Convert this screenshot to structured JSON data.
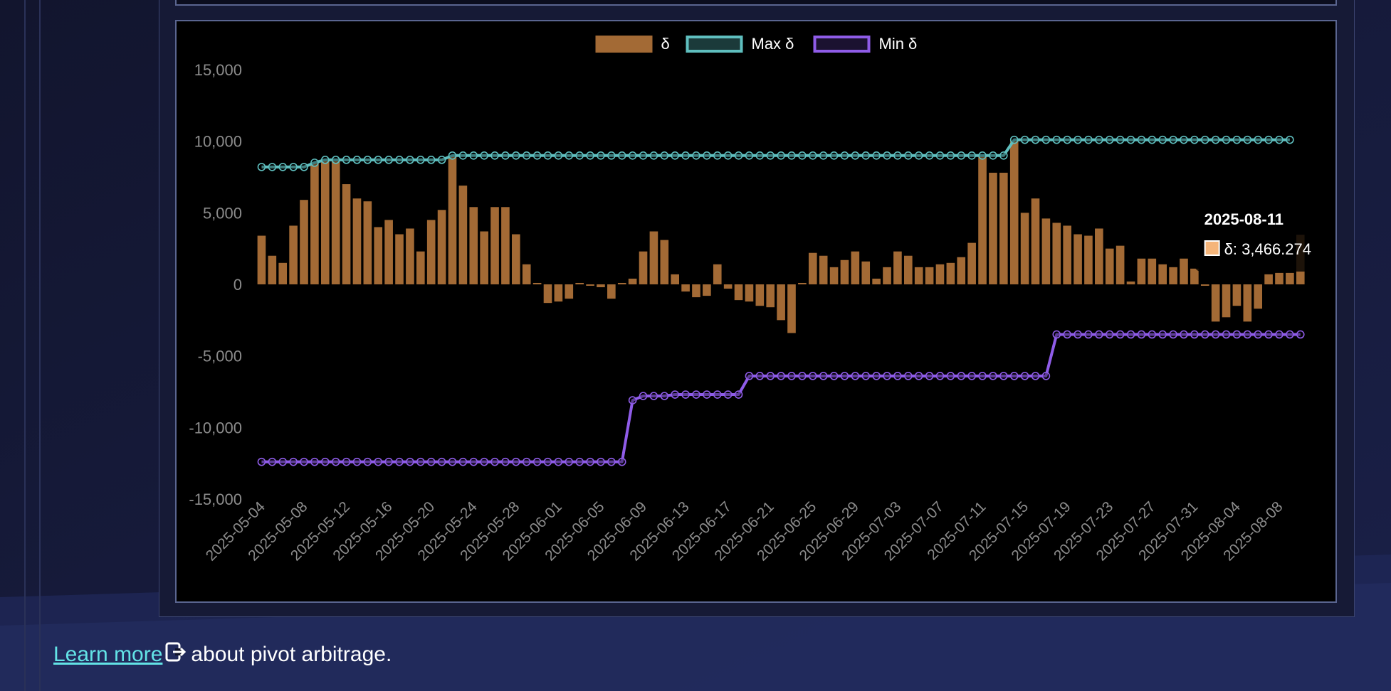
{
  "chart_data": {
    "type": "bar",
    "x_range": [
      "2025-05-04",
      "2025-08-12"
    ],
    "x_tick_labels": [
      "2025-05-04",
      "2025-05-08",
      "2025-05-12",
      "2025-05-16",
      "2025-05-20",
      "2025-05-24",
      "2025-05-28",
      "2025-06-01",
      "2025-06-05",
      "2025-06-09",
      "2025-06-13",
      "2025-06-17",
      "2025-06-21",
      "2025-06-25",
      "2025-06-29",
      "2025-07-03",
      "2025-07-07",
      "2025-07-11",
      "2025-07-15",
      "2025-07-19",
      "2025-07-23",
      "2025-07-27",
      "2025-07-31",
      "2025-08-04",
      "2025-08-08"
    ],
    "ylim": [
      -15000,
      15000
    ],
    "y_ticks": [
      15000,
      10000,
      5000,
      0,
      -5000,
      -10000,
      -15000
    ],
    "y_tick_labels": [
      "15,000",
      "10,000",
      "5,000",
      "0",
      "-5,000",
      "-10,000",
      "-15,000"
    ],
    "grid": false,
    "legend_position": "top",
    "series": [
      {
        "name": "δ",
        "type": "bar",
        "color": "#a36a35",
        "values": [
          3400,
          2000,
          1500,
          4100,
          5900,
          8500,
          8700,
          8600,
          7000,
          6000,
          5800,
          4000,
          4500,
          3500,
          3900,
          2300,
          4500,
          5200,
          9000,
          6900,
          5400,
          3700,
          5400,
          5400,
          3500,
          1400,
          100,
          -1300,
          -1200,
          -1000,
          100,
          -100,
          -200,
          -1000,
          100,
          400,
          2300,
          3700,
          3100,
          700,
          -500,
          -900,
          -800,
          1400,
          -300,
          -1100,
          -1200,
          -1500,
          -1600,
          -2500,
          -3400,
          100,
          2200,
          2000,
          1200,
          1700,
          2300,
          1600,
          400,
          1200,
          2300,
          2000,
          1200,
          1200,
          1400,
          1500,
          1900,
          2900,
          9000,
          7800,
          7800,
          10000,
          5000,
          6000,
          4600,
          4300,
          4100,
          3500,
          3400,
          3900,
          2500,
          2700,
          200,
          1800,
          1800,
          1400,
          1200,
          1800,
          1100,
          -100,
          -2600,
          -2300,
          -1500,
          -2600,
          -1700,
          700,
          800,
          800,
          3466.274
        ],
        "value_format": "3,466.274"
      },
      {
        "name": "Max δ",
        "type": "line",
        "color": "#5fbfbf",
        "values": [
          8200,
          8200,
          8200,
          8200,
          8200,
          8500,
          8700,
          8700,
          8700,
          8700,
          8700,
          8700,
          8700,
          8700,
          8700,
          8700,
          8700,
          8700,
          9000,
          9000,
          9000,
          9000,
          9000,
          9000,
          9000,
          9000,
          9000,
          9000,
          9000,
          9000,
          9000,
          9000,
          9000,
          9000,
          9000,
          9000,
          9000,
          9000,
          9000,
          9000,
          9000,
          9000,
          9000,
          9000,
          9000,
          9000,
          9000,
          9000,
          9000,
          9000,
          9000,
          9000,
          9000,
          9000,
          9000,
          9000,
          9000,
          9000,
          9000,
          9000,
          9000,
          9000,
          9000,
          9000,
          9000,
          9000,
          9000,
          9000,
          9000,
          9000,
          9000,
          10100,
          10100,
          10100,
          10100,
          10100,
          10100,
          10100,
          10100,
          10100,
          10100,
          10100,
          10100,
          10100,
          10100,
          10100,
          10100,
          10100,
          10100,
          10100,
          10100,
          10100,
          10100,
          10100,
          10100,
          10100,
          10100,
          10100
        ]
      },
      {
        "name": "Min δ",
        "type": "line",
        "color": "#8f5ce8",
        "values": [
          -12400,
          -12400,
          -12400,
          -12400,
          -12400,
          -12400,
          -12400,
          -12400,
          -12400,
          -12400,
          -12400,
          -12400,
          -12400,
          -12400,
          -12400,
          -12400,
          -12400,
          -12400,
          -12400,
          -12400,
          -12400,
          -12400,
          -12400,
          -12400,
          -12400,
          -12400,
          -12400,
          -12400,
          -12400,
          -12400,
          -12400,
          -12400,
          -12400,
          -12400,
          -12400,
          -8100,
          -7800,
          -7800,
          -7800,
          -7700,
          -7700,
          -7700,
          -7700,
          -7700,
          -7700,
          -7700,
          -6400,
          -6400,
          -6400,
          -6400,
          -6400,
          -6400,
          -6400,
          -6400,
          -6400,
          -6400,
          -6400,
          -6400,
          -6400,
          -6400,
          -6400,
          -6400,
          -6400,
          -6400,
          -6400,
          -6400,
          -6400,
          -6400,
          -6400,
          -6400,
          -6400,
          -6400,
          -6400,
          -6400,
          -6400,
          -3500,
          -3500,
          -3500,
          -3500,
          -3500,
          -3500,
          -3500,
          -3500,
          -3500,
          -3500,
          -3500,
          -3500,
          -3500,
          -3500,
          -3500,
          -3500,
          -3500,
          -3500,
          -3500,
          -3500,
          -3500,
          -3500,
          -3500,
          -3500
        ]
      }
    ],
    "tooltip": {
      "title": "2025-08-11",
      "series": "δ",
      "value": "3,466.274",
      "swatch_color": "#f5b57a"
    }
  },
  "footer": {
    "link_text": "Learn more",
    "suffix_text": "about pivot arbitrage.",
    "link_color": "#63e3e6"
  },
  "icons": {
    "external_link": "external-link-icon"
  }
}
